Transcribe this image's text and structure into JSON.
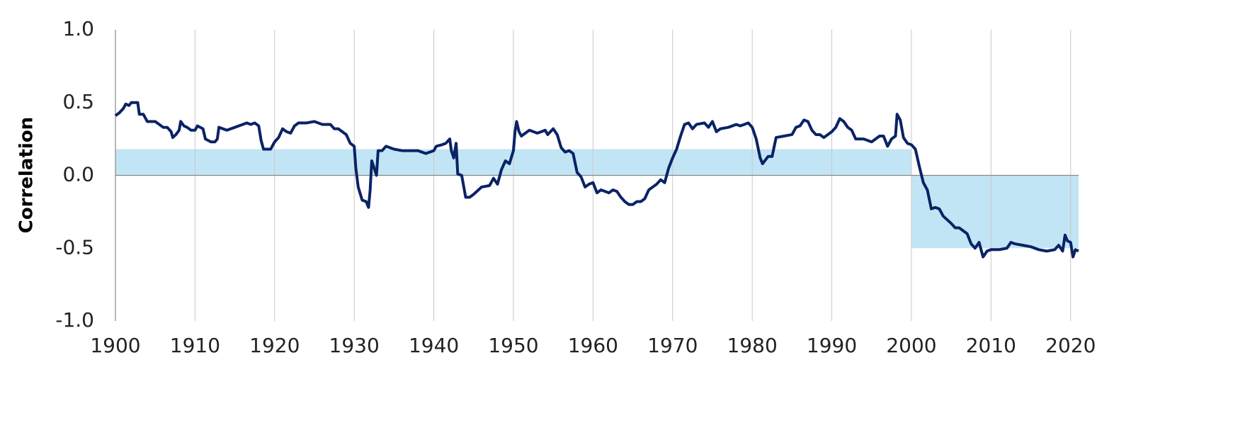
{
  "chart_data": {
    "type": "line",
    "ylabel": "Correlation",
    "color": "#0b2265",
    "grid": "x",
    "xlim": [
      1900,
      2021
    ],
    "xticks": [
      1900,
      1910,
      1920,
      1930,
      1940,
      1950,
      1960,
      1970,
      1980,
      1990,
      2000,
      2010,
      2020
    ],
    "ylim": [
      -1,
      1
    ],
    "yticks": [
      {
        "value": -1,
        "label": "-1.0"
      },
      -0.5,
      {
        "value": 0,
        "label": "0.0"
      },
      0.5,
      {
        "value": 1,
        "label": "1.0"
      }
    ],
    "bands": [
      {
        "x": [
          1900,
          2000
        ],
        "value": 0.18,
        "color": "#c2e5f5"
      },
      {
        "x": [
          2000,
          2021
        ],
        "value": -0.5,
        "color": "#c2e5f5"
      }
    ],
    "x": [
      1900,
      1900.5,
      1901,
      1901.3,
      1901.7,
      1902,
      1902.5,
      1902.8,
      1903,
      1903.5,
      1904,
      1905,
      1905.5,
      1906,
      1906.5,
      1907,
      1907.2,
      1907.6,
      1908,
      1908.2,
      1908.6,
      1909,
      1909.5,
      1910,
      1910.3,
      1911,
      1911.3,
      1912,
      1912.5,
      1912.8,
      1913,
      1914,
      1915,
      1916,
      1916.5,
      1917,
      1917.5,
      1918,
      1918.3,
      1918.6,
      1919,
      1919.5,
      1920,
      1920.5,
      1921,
      1921.5,
      1922,
      1922.5,
      1923,
      1924,
      1925,
      1926,
      1927,
      1927.5,
      1928,
      1929,
      1929.5,
      1930,
      1930.2,
      1930.5,
      1931,
      1931.5,
      1931.8,
      1932,
      1932.2,
      1932.5,
      1932.8,
      1933,
      1933.5,
      1934,
      1934.5,
      1935,
      1936,
      1937,
      1938,
      1939,
      1939.5,
      1940,
      1940.3,
      1941,
      1941.5,
      1942,
      1942.2,
      1942.5,
      1942.8,
      1943,
      1943.5,
      1944,
      1944.5,
      1945,
      1946,
      1947,
      1947.5,
      1948,
      1948.5,
      1949,
      1949.5,
      1950,
      1950.2,
      1950.4,
      1950.7,
      1951,
      1952,
      1953,
      1954,
      1954.3,
      1955,
      1955.5,
      1956,
      1956.5,
      1957,
      1957.5,
      1958,
      1958.5,
      1959,
      1959.5,
      1960,
      1960.5,
      1961,
      1962,
      1962.5,
      1963,
      1963.5,
      1964,
      1964.5,
      1965,
      1965.5,
      1966,
      1966.5,
      1967,
      1967.5,
      1968,
      1968.5,
      1969,
      1969.5,
      1970,
      1970.5,
      1971,
      1971.5,
      1972,
      1972.5,
      1973,
      1974,
      1974.5,
      1975,
      1975.5,
      1976,
      1977,
      1978,
      1978.5,
      1979,
      1979.5,
      1980,
      1980.5,
      1981,
      1981.3,
      1982,
      1982.5,
      1983,
      1984,
      1985,
      1985.5,
      1986,
      1986.5,
      1987,
      1987.5,
      1988,
      1988.5,
      1989,
      1990,
      1990.5,
      1991,
      1991.5,
      1992,
      1992.5,
      1993,
      1994,
      1995,
      1996,
      1996.5,
      1997,
      1997.5,
      1998,
      1998.2,
      1998.6,
      1999,
      1999.5,
      2000,
      2000.5,
      2001,
      2001.5,
      2002,
      2002.5,
      2003,
      2003.5,
      2004,
      2005,
      2005.5,
      2006,
      2007,
      2007.5,
      2008,
      2008.5,
      2009,
      2009.5,
      2010,
      2011,
      2012,
      2012.5,
      2013,
      2014,
      2015,
      2016,
      2017,
      2018,
      2018.5,
      2019,
      2019.3,
      2019.6,
      2020,
      2020.3,
      2020.6,
      2021
    ],
    "values": [
      0.41,
      0.43,
      0.46,
      0.49,
      0.48,
      0.5,
      0.5,
      0.5,
      0.42,
      0.42,
      0.37,
      0.37,
      0.35,
      0.33,
      0.33,
      0.3,
      0.26,
      0.28,
      0.31,
      0.37,
      0.34,
      0.33,
      0.31,
      0.31,
      0.34,
      0.32,
      0.25,
      0.23,
      0.23,
      0.25,
      0.33,
      0.31,
      0.33,
      0.35,
      0.36,
      0.35,
      0.36,
      0.34,
      0.24,
      0.18,
      0.18,
      0.18,
      0.23,
      0.26,
      0.32,
      0.3,
      0.29,
      0.34,
      0.36,
      0.36,
      0.37,
      0.35,
      0.35,
      0.32,
      0.32,
      0.28,
      0.22,
      0.2,
      0.05,
      -0.08,
      -0.17,
      -0.18,
      -0.22,
      -0.1,
      0.1,
      0.05,
      0.0,
      0.17,
      0.17,
      0.2,
      0.19,
      0.18,
      0.17,
      0.17,
      0.17,
      0.15,
      0.16,
      0.17,
      0.2,
      0.21,
      0.22,
      0.25,
      0.17,
      0.12,
      0.22,
      0.01,
      0.0,
      -0.15,
      -0.15,
      -0.13,
      -0.08,
      -0.07,
      -0.02,
      -0.06,
      0.04,
      0.1,
      0.08,
      0.17,
      0.3,
      0.37,
      0.3,
      0.27,
      0.31,
      0.29,
      0.31,
      0.28,
      0.32,
      0.28,
      0.19,
      0.16,
      0.17,
      0.15,
      0.02,
      -0.01,
      -0.08,
      -0.06,
      -0.05,
      -0.12,
      -0.1,
      -0.12,
      -0.1,
      -0.11,
      -0.15,
      -0.18,
      -0.2,
      -0.2,
      -0.18,
      -0.18,
      -0.16,
      -0.1,
      -0.08,
      -0.06,
      -0.03,
      -0.05,
      0.05,
      0.12,
      0.18,
      0.27,
      0.35,
      0.36,
      0.32,
      0.35,
      0.36,
      0.33,
      0.37,
      0.3,
      0.32,
      0.33,
      0.35,
      0.34,
      0.35,
      0.36,
      0.33,
      0.25,
      0.12,
      0.08,
      0.13,
      0.13,
      0.26,
      0.27,
      0.28,
      0.33,
      0.34,
      0.38,
      0.37,
      0.31,
      0.28,
      0.28,
      0.26,
      0.3,
      0.33,
      0.39,
      0.37,
      0.33,
      0.31,
      0.25,
      0.25,
      0.23,
      0.27,
      0.27,
      0.2,
      0.25,
      0.27,
      0.42,
      0.38,
      0.26,
      0.22,
      0.21,
      0.18,
      0.06,
      -0.05,
      -0.1,
      -0.23,
      -0.22,
      -0.23,
      -0.28,
      -0.33,
      -0.36,
      -0.36,
      -0.4,
      -0.47,
      -0.5,
      -0.46,
      -0.56,
      -0.52,
      -0.51,
      -0.51,
      -0.5,
      -0.46,
      -0.47,
      -0.48,
      -0.49,
      -0.51,
      -0.52,
      -0.51,
      -0.48,
      -0.52,
      -0.41,
      -0.45,
      -0.46,
      -0.56,
      -0.51,
      -0.52
    ]
  }
}
